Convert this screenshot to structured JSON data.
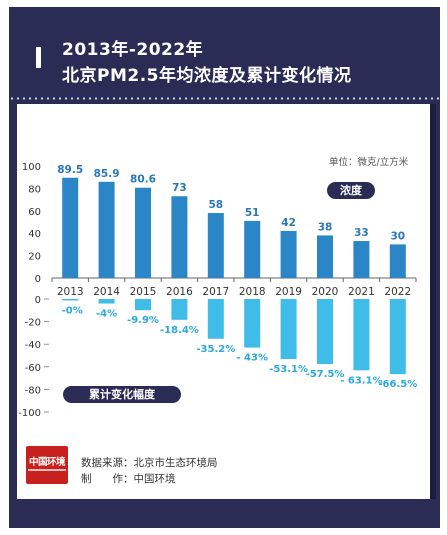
{
  "header": {
    "title_line1": "2013年-2022年",
    "title_line2": "北京PM2.5年均浓度及累计变化情况"
  },
  "legend": {
    "concentration_label": "浓度",
    "cumulative_label": "累计变化幅度",
    "unit": "单位：微克/立方米"
  },
  "chart_data": [
    {
      "type": "bar",
      "name": "浓度",
      "categories": [
        "2013",
        "2014",
        "2015",
        "2016",
        "2017",
        "2018",
        "2019",
        "2020",
        "2021",
        "2022"
      ],
      "values": [
        89.5,
        85.9,
        80.6,
        73,
        58,
        51,
        42,
        38,
        33,
        30
      ],
      "value_labels": [
        "89.5",
        "85.9",
        "80.6",
        "73",
        "58",
        "51",
        "42",
        "38",
        "33",
        "30"
      ],
      "ylim": [
        0,
        100
      ],
      "yticks": [
        "0",
        "20",
        "40",
        "60",
        "80",
        "100"
      ],
      "color": "#2a86c6"
    },
    {
      "type": "bar",
      "name": "累计变化幅度",
      "categories": [
        "2013",
        "2014",
        "2015",
        "2016",
        "2017",
        "2018",
        "2019",
        "2020",
        "2021",
        "2022"
      ],
      "values": [
        0,
        -4,
        -9.9,
        -18.4,
        -35.2,
        -43,
        -53.1,
        -57.5,
        -63.1,
        -66.5
      ],
      "value_labels": [
        "-0%",
        "-4%",
        "-9.9%",
        "-18.4%",
        "-35.2%",
        "- 43%",
        "-53.1%",
        "-57.5%",
        "- 63.1%",
        "-66.5%"
      ],
      "ylim": [
        -100,
        0
      ],
      "yticks": [
        "0",
        "-20",
        "-40",
        "-60",
        "-80",
        "-100"
      ],
      "color": "#3fbce8"
    }
  ],
  "footer": {
    "source": "数据来源：北京市生态环境局",
    "maker": "制　　作：中国环境",
    "logo_text": "中国环境"
  }
}
